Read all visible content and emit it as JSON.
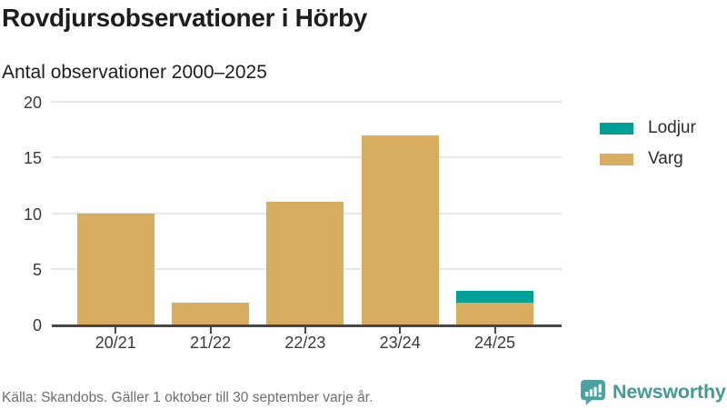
{
  "header": {
    "title": "Rovdjursobservationer i Hörby",
    "subtitle": "Antal observationer 2000–2025"
  },
  "legend": {
    "items": [
      {
        "label": "Lodjur",
        "color": "#00a096"
      },
      {
        "label": "Varg",
        "color": "#d9ad5f"
      }
    ]
  },
  "footer": {
    "source": "Källa: Skandobs. Gäller 1 oktober till 30 september varje år."
  },
  "branding": {
    "name": "Newsworthy",
    "text_color": "#459a94",
    "icon": "newsworthy-speech-bubble-bar-chart-icon",
    "icon_color": "#4aa3a0"
  },
  "chart_data": {
    "type": "bar",
    "stacked": true,
    "categories": [
      "20/21",
      "21/22",
      "22/23",
      "23/24",
      "24/25"
    ],
    "series": [
      {
        "name": "Varg",
        "color": "#d9ad5f",
        "values": [
          10,
          2,
          11,
          17,
          2
        ]
      },
      {
        "name": "Lodjur",
        "color": "#00a096",
        "values": [
          0,
          0,
          0,
          0,
          1
        ]
      }
    ],
    "title": "Rovdjursobservationer i Hörby",
    "subtitle": "Antal observationer 2000–2025",
    "xlabel": "",
    "ylabel": "Antal observationer",
    "ylim": [
      0,
      20
    ],
    "yticks": [
      0,
      5,
      10,
      15,
      20
    ],
    "grid": true,
    "legend_position": "right",
    "gridline_color": "#e7e7e7",
    "axis_color": "#474747"
  }
}
